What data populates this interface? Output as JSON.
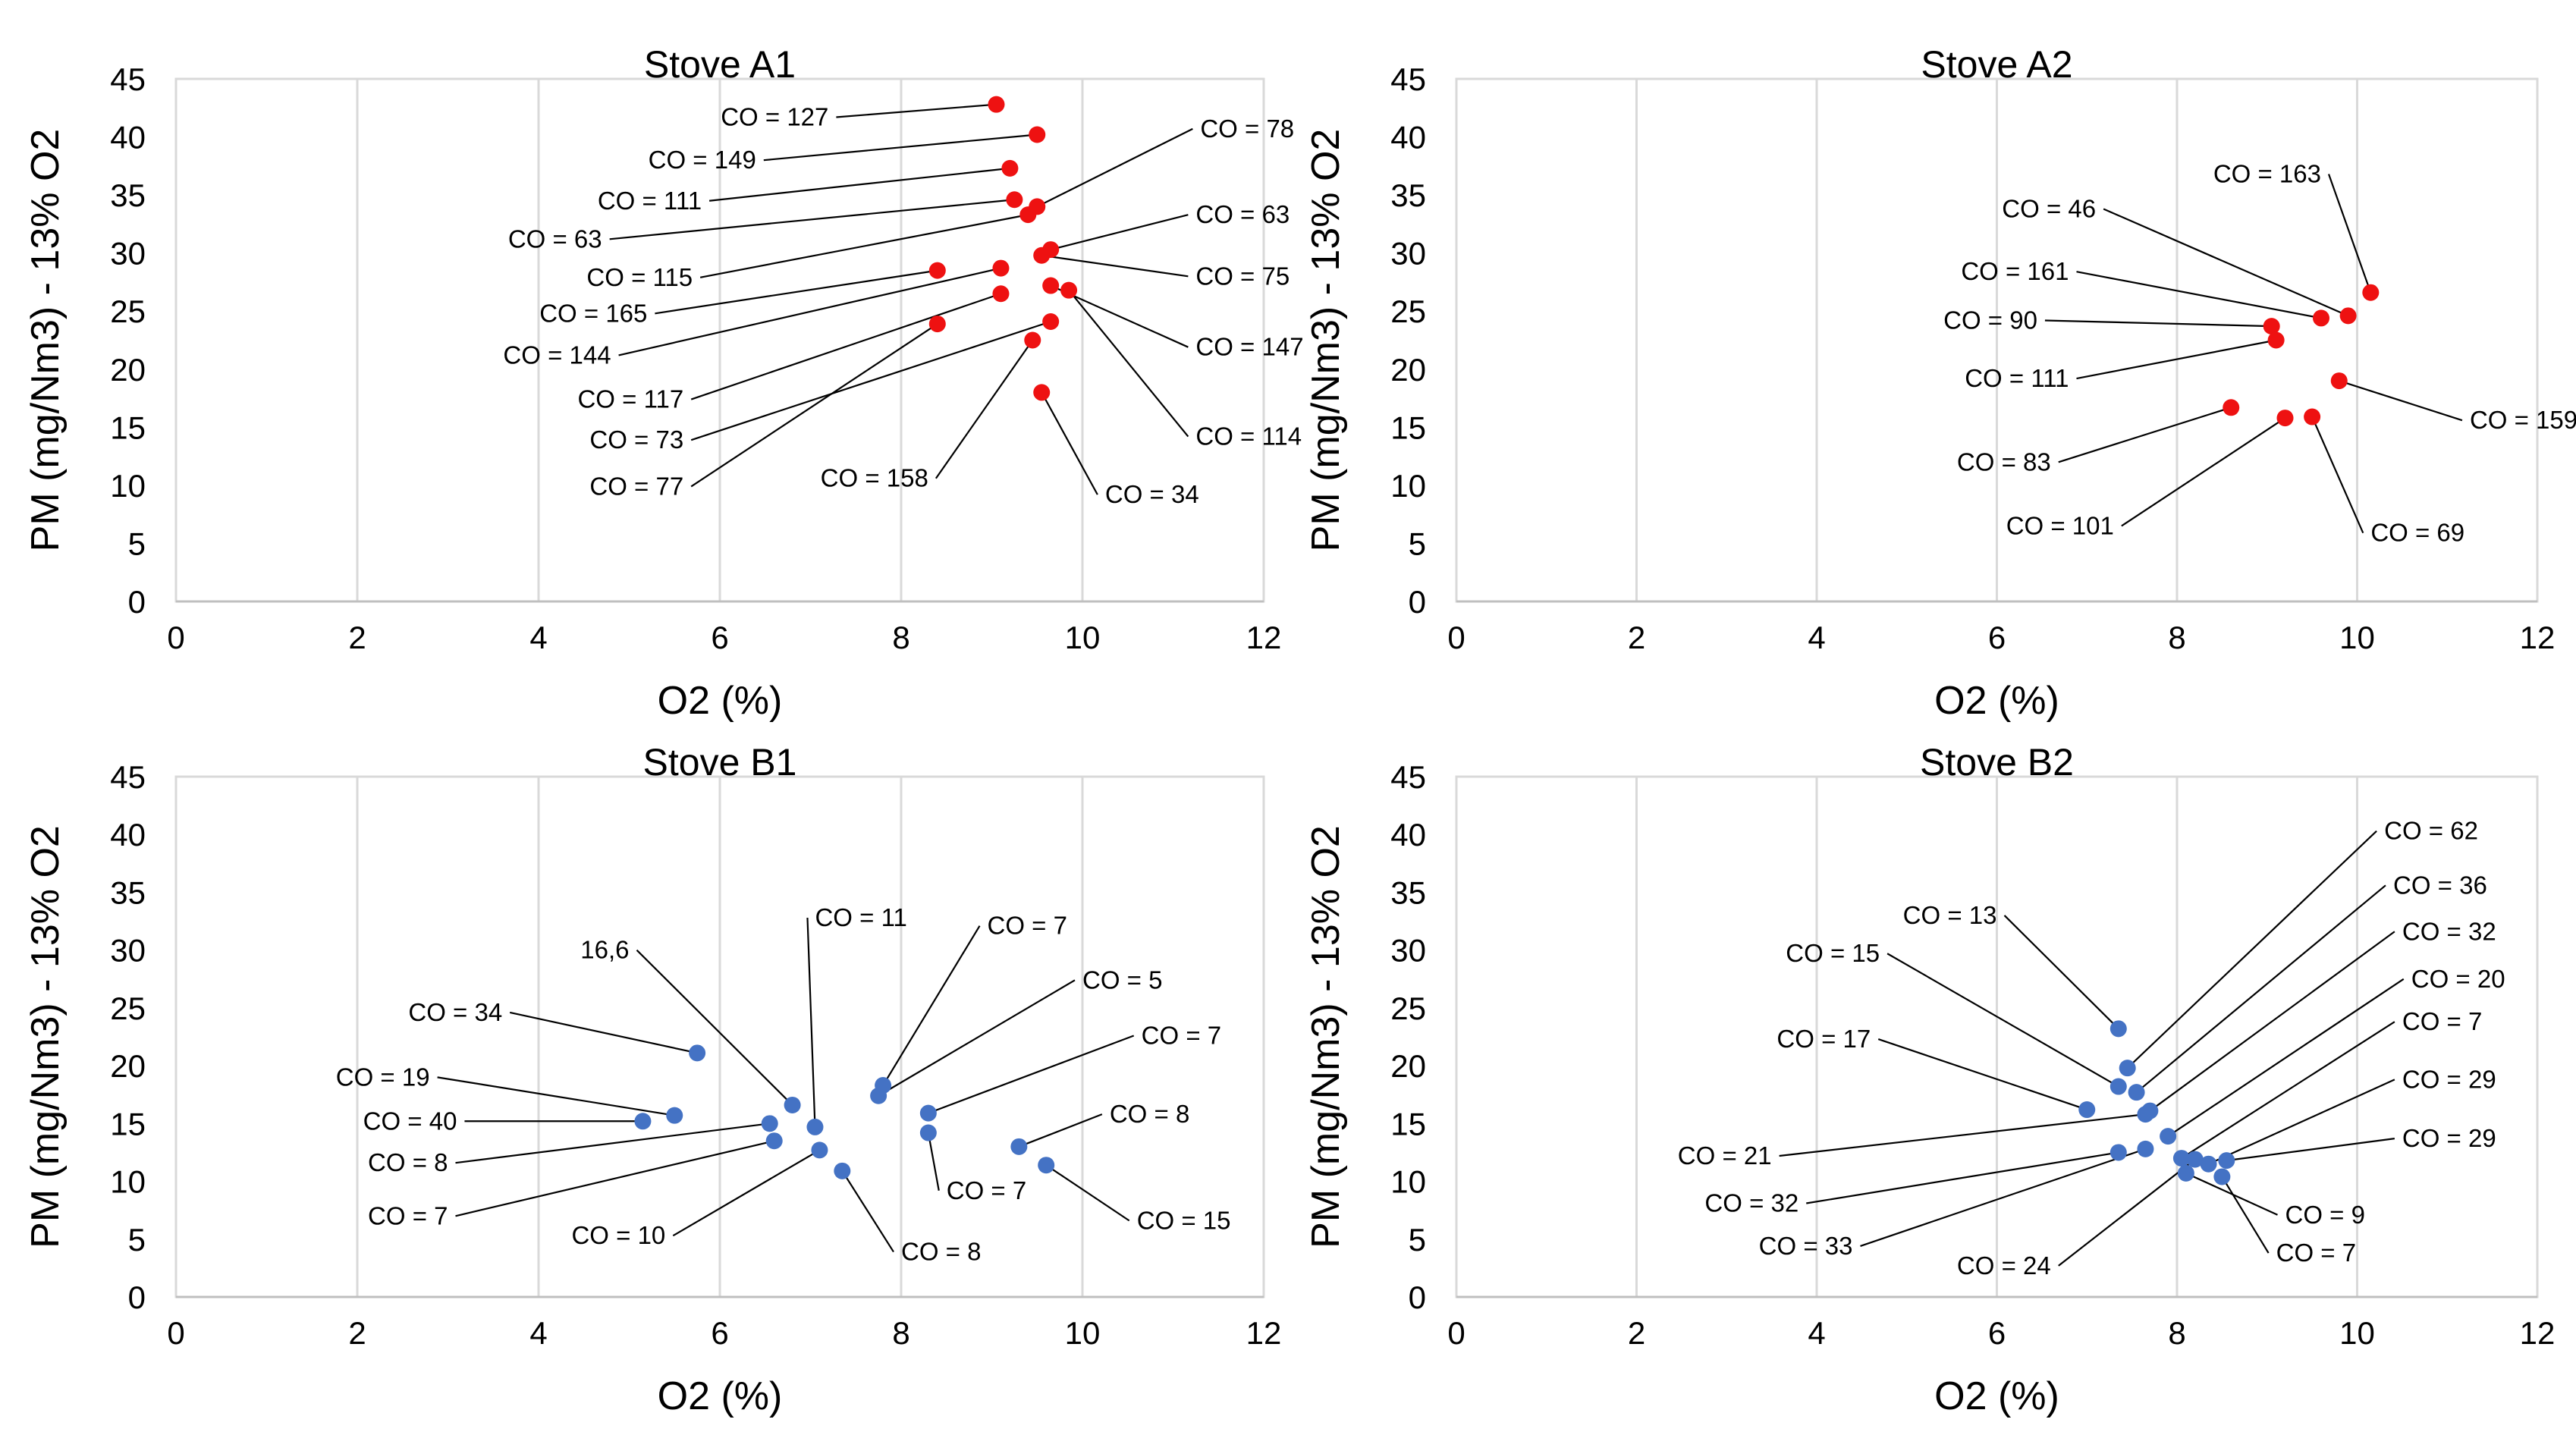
{
  "colors": {
    "stove_a": "#ee1111",
    "stove_b": "#4472c4",
    "grid": "#d9d9d9",
    "axis": "#000000",
    "leader": "#000000"
  },
  "chart_data": [
    {
      "type": "scatter",
      "title": "Stove A1",
      "xlabel": "O2 (%)",
      "ylabel": "PM (mg/Nm3)  - 13% O2",
      "xlim": [
        0,
        12
      ],
      "ylim": [
        0,
        45
      ],
      "xticks": [
        "0",
        "2",
        "4",
        "6",
        "8",
        "10",
        "12"
      ],
      "yticks": [
        "0",
        "5",
        "10",
        "15",
        "20",
        "25",
        "30",
        "35",
        "40",
        "45"
      ],
      "grid": "vertical",
      "color_key": "stove_a",
      "points": [
        {
          "x": 9.05,
          "y": 42.8,
          "label": "CO = 127",
          "lx": 7.2,
          "ly": 41.7
        },
        {
          "x": 9.5,
          "y": 40.2,
          "label": "CO = 149",
          "lx": 6.4,
          "ly": 38.0
        },
        {
          "x": 9.2,
          "y": 37.3,
          "label": "CO = 111",
          "lx": 5.8,
          "ly": 34.5
        },
        {
          "x": 9.25,
          "y": 34.6,
          "label": "CO = 63",
          "lx": 4.7,
          "ly": 31.2
        },
        {
          "x": 9.5,
          "y": 34.0,
          "label": "CO = 78",
          "lx": 11.3,
          "ly": 40.7
        },
        {
          "x": 9.4,
          "y": 33.3,
          "label": "CO = 115",
          "lx": 5.7,
          "ly": 27.9
        },
        {
          "x": 9.65,
          "y": 30.3,
          "label": "CO = 63",
          "lx": 11.25,
          "ly": 33.3
        },
        {
          "x": 9.55,
          "y": 29.8,
          "label": "CO = 75",
          "lx": 11.25,
          "ly": 28.0
        },
        {
          "x": 8.4,
          "y": 28.5,
          "label": "CO = 165",
          "lx": 5.2,
          "ly": 24.8
        },
        {
          "x": 9.1,
          "y": 28.7,
          "label": "CO = 144",
          "lx": 4.8,
          "ly": 21.2
        },
        {
          "x": 9.65,
          "y": 27.2,
          "label": "CO = 147",
          "lx": 11.25,
          "ly": 21.9
        },
        {
          "x": 9.85,
          "y": 26.8,
          "label": "CO = 114",
          "lx": 11.25,
          "ly": 14.2
        },
        {
          "x": 9.1,
          "y": 26.5,
          "label": "CO = 117",
          "lx": 5.6,
          "ly": 17.4
        },
        {
          "x": 9.65,
          "y": 24.1,
          "label": "CO = 73",
          "lx": 5.6,
          "ly": 13.9
        },
        {
          "x": 8.4,
          "y": 23.9,
          "label": "CO = 77",
          "lx": 5.6,
          "ly": 9.9
        },
        {
          "x": 9.45,
          "y": 22.5,
          "label": "CO = 158",
          "lx": 8.3,
          "ly": 10.6
        },
        {
          "x": 9.55,
          "y": 18.0,
          "label": "CO = 34",
          "lx": 10.25,
          "ly": 9.2
        }
      ]
    },
    {
      "type": "scatter",
      "title": "Stove A2",
      "xlabel": "O2 (%)",
      "ylabel": "PM (mg/Nm3)  - 13% O2",
      "xlim": [
        0,
        12
      ],
      "ylim": [
        0,
        45
      ],
      "xticks": [
        "0",
        "2",
        "4",
        "6",
        "8",
        "10",
        "12"
      ],
      "yticks": [
        "0",
        "5",
        "10",
        "15",
        "20",
        "25",
        "30",
        "35",
        "40",
        "45"
      ],
      "grid": "vertical",
      "color_key": "stove_a",
      "points": [
        {
          "x": 10.15,
          "y": 26.6,
          "label": "CO = 163",
          "lx": 9.6,
          "ly": 36.8
        },
        {
          "x": 9.9,
          "y": 24.6,
          "label": "CO = 46",
          "lx": 7.1,
          "ly": 33.8
        },
        {
          "x": 9.6,
          "y": 24.4,
          "label": "CO = 161",
          "lx": 6.8,
          "ly": 28.4
        },
        {
          "x": 9.05,
          "y": 23.7,
          "label": "CO = 90",
          "lx": 6.45,
          "ly": 24.2
        },
        {
          "x": 9.1,
          "y": 22.5,
          "label": "CO = 111",
          "lx": 6.8,
          "ly": 19.2
        },
        {
          "x": 9.8,
          "y": 19.0,
          "label": "CO = 159",
          "lx": 11.25,
          "ly": 15.6
        },
        {
          "x": 8.6,
          "y": 16.7,
          "label": "CO = 83",
          "lx": 6.6,
          "ly": 12.0
        },
        {
          "x": 9.2,
          "y": 15.8,
          "label": "CO = 101",
          "lx": 7.3,
          "ly": 6.5
        },
        {
          "x": 9.5,
          "y": 15.9,
          "label": "CO = 69",
          "lx": 10.15,
          "ly": 5.9
        }
      ]
    },
    {
      "type": "scatter",
      "title": "Stove B1",
      "xlabel": "O2 (%)",
      "ylabel": "PM (mg/Nm3)  - 13% O2",
      "xlim": [
        0,
        12
      ],
      "ylim": [
        0,
        45
      ],
      "xticks": [
        "0",
        "2",
        "4",
        "6",
        "8",
        "10",
        "12"
      ],
      "yticks": [
        "0",
        "5",
        "10",
        "15",
        "20",
        "25",
        "30",
        "35",
        "40",
        "45"
      ],
      "grid": "vertical",
      "color_key": "stove_b",
      "points": [
        {
          "x": 5.75,
          "y": 21.1,
          "label": "CO = 34",
          "lx": 3.6,
          "ly": 24.6
        },
        {
          "x": 5.5,
          "y": 15.7,
          "label": "CO = 19",
          "lx": 2.8,
          "ly": 19.0
        },
        {
          "x": 5.15,
          "y": 15.2,
          "label": "CO = 40",
          "lx": 3.1,
          "ly": 15.2
        },
        {
          "x": 6.8,
          "y": 16.6,
          "label": "16,6",
          "lx": 5.0,
          "ly": 30.0
        },
        {
          "x": 6.55,
          "y": 15.0,
          "label": "CO = 8",
          "lx": 3.0,
          "ly": 11.6
        },
        {
          "x": 7.05,
          "y": 14.7,
          "label": "CO = 11",
          "lx": 7.05,
          "ly": 32.8
        },
        {
          "x": 6.6,
          "y": 13.5,
          "label": "CO = 7",
          "lx": 3.0,
          "ly": 7.0
        },
        {
          "x": 7.1,
          "y": 12.7,
          "label": "CO = 10",
          "lx": 5.4,
          "ly": 5.3
        },
        {
          "x": 7.35,
          "y": 10.9,
          "label": "CO = 8",
          "lx": 8.0,
          "ly": 3.9
        },
        {
          "x": 7.8,
          "y": 18.3,
          "label": "CO = 7",
          "lx": 8.95,
          "ly": 32.1
        },
        {
          "x": 7.75,
          "y": 17.4,
          "label": "CO = 5",
          "lx": 10.0,
          "ly": 27.4
        },
        {
          "x": 8.3,
          "y": 15.9,
          "label": "CO = 7",
          "lx": 10.65,
          "ly": 22.6
        },
        {
          "x": 8.3,
          "y": 14.2,
          "label": "CO = 7",
          "lx": 8.5,
          "ly": 9.2
        },
        {
          "x": 9.3,
          "y": 13.0,
          "label": "CO = 8",
          "lx": 10.3,
          "ly": 15.8
        },
        {
          "x": 9.6,
          "y": 11.4,
          "label": "CO = 15",
          "lx": 10.6,
          "ly": 6.6
        }
      ]
    },
    {
      "type": "scatter",
      "title": "Stove B2",
      "xlabel": "O2 (%)",
      "ylabel": "PM (mg/Nm3)  - 13% O2",
      "xlim": [
        0,
        12
      ],
      "ylim": [
        0,
        45
      ],
      "xticks": [
        "0",
        "2",
        "4",
        "6",
        "8",
        "10",
        "12"
      ],
      "yticks": [
        "0",
        "5",
        "10",
        "15",
        "20",
        "25",
        "30",
        "35",
        "40",
        "45"
      ],
      "grid": "vertical",
      "color_key": "stove_b",
      "points": [
        {
          "x": 7.35,
          "y": 23.2,
          "label": "CO = 13",
          "lx": 6.0,
          "ly": 33.0
        },
        {
          "x": 7.45,
          "y": 19.8,
          "label": "CO = 62",
          "lx": 10.3,
          "ly": 40.3
        },
        {
          "x": 7.35,
          "y": 18.2,
          "label": "CO = 15",
          "lx": 4.7,
          "ly": 29.7
        },
        {
          "x": 7.55,
          "y": 17.7,
          "label": "CO = 36",
          "lx": 10.4,
          "ly": 35.6
        },
        {
          "x": 7.0,
          "y": 16.2,
          "label": "CO = 17",
          "lx": 4.6,
          "ly": 22.3
        },
        {
          "x": 7.7,
          "y": 16.1,
          "label": "CO = 32",
          "lx": 10.5,
          "ly": 31.6
        },
        {
          "x": 7.65,
          "y": 15.8,
          "label": "CO = 21",
          "lx": 3.5,
          "ly": 12.2
        },
        {
          "x": 7.9,
          "y": 13.9,
          "label": "CO = 20",
          "lx": 10.6,
          "ly": 27.5
        },
        {
          "x": 7.35,
          "y": 12.5,
          "label": "CO = 32",
          "lx": 3.8,
          "ly": 8.1
        },
        {
          "x": 7.65,
          "y": 12.8,
          "label": "CO = 33",
          "lx": 4.4,
          "ly": 4.4
        },
        {
          "x": 8.05,
          "y": 12.0,
          "label": "CO = 7",
          "lx": 10.5,
          "ly": 23.8
        },
        {
          "x": 8.2,
          "y": 11.9,
          "label": "CO = 24",
          "lx": 6.6,
          "ly": 2.7
        },
        {
          "x": 8.35,
          "y": 11.5,
          "label": "CO = 29",
          "lx": 10.5,
          "ly": 18.8
        },
        {
          "x": 8.55,
          "y": 11.8,
          "label": "CO = 29",
          "lx": 10.5,
          "ly": 13.7
        },
        {
          "x": 8.1,
          "y": 10.7,
          "label": "CO = 9",
          "lx": 9.2,
          "ly": 7.1
        },
        {
          "x": 8.5,
          "y": 10.4,
          "label": "CO = 7",
          "lx": 9.1,
          "ly": 3.8
        }
      ]
    }
  ]
}
